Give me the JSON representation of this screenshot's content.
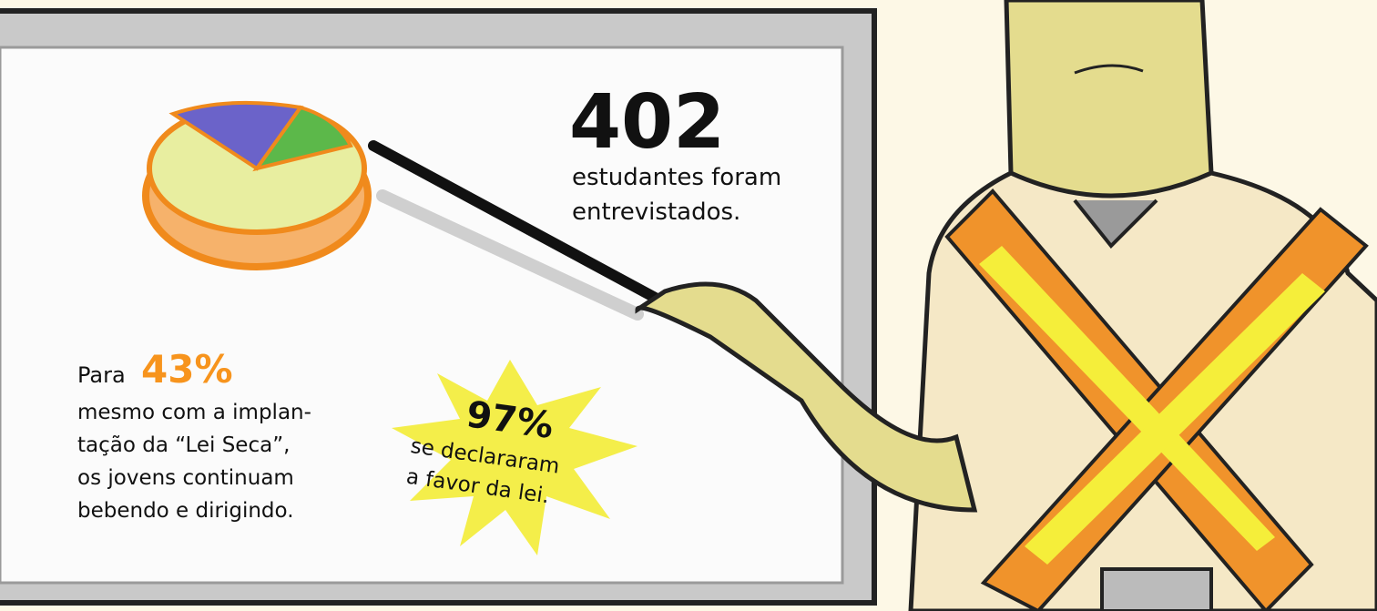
{
  "board": {
    "total": {
      "number": "402",
      "lines": [
        "estudantes foram",
        "entrevistados."
      ]
    },
    "finding1": {
      "prefix": "Para",
      "number": "43%",
      "lines": [
        "mesmo com a implan-",
        "tação da “Lei Seca”,",
        "os jovens continuam",
        "bebendo e dirigindo."
      ]
    },
    "finding2": {
      "number": "97%",
      "lines": [
        "se declararam",
        "a favor da lei."
      ]
    }
  }
}
